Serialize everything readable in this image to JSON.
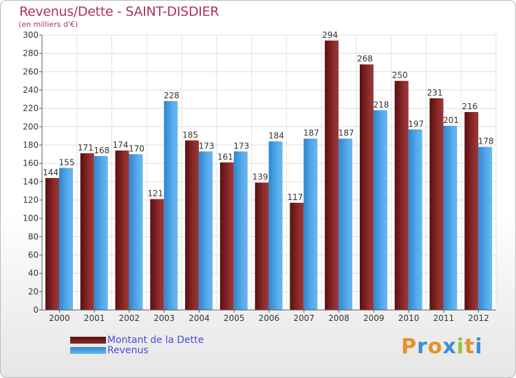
{
  "chart_data": {
    "type": "bar",
    "title": "Revenus/Dette - SAINT-DISDIER",
    "subtitle": "(en milliers d'€)",
    "categories": [
      "2000",
      "2001",
      "2002",
      "2003",
      "2004",
      "2005",
      "2006",
      "2007",
      "2008",
      "2009",
      "2010",
      "2011",
      "2012"
    ],
    "series": [
      {
        "name": "Montant de la Dette",
        "values": [
          144,
          171,
          174,
          121,
          185,
          161,
          139,
          117,
          294,
          268,
          250,
          231,
          216
        ],
        "color": "#7a1a1a"
      },
      {
        "name": "Revenus",
        "values": [
          155,
          168,
          170,
          228,
          173,
          173,
          184,
          187,
          187,
          218,
          197,
          201,
          178
        ],
        "color": "#4ea6e6"
      }
    ],
    "ylim": [
      0,
      300
    ],
    "yticks": [
      0,
      20,
      40,
      60,
      80,
      100,
      120,
      140,
      160,
      180,
      200,
      220,
      240,
      260,
      280,
      300
    ],
    "grid": true,
    "legend_position": "bottom-left"
  },
  "logo": {
    "text": "Proxiti",
    "letters": [
      {
        "ch": "P",
        "color": "#e8912a"
      },
      {
        "ch": "r",
        "color": "#3a8fd8"
      },
      {
        "ch": "o",
        "color": "#e8912a"
      },
      {
        "ch": "x",
        "color": "#3a8fd8"
      },
      {
        "ch": "i",
        "color": "#8cc63e"
      },
      {
        "ch": "t",
        "color": "#e8912a"
      },
      {
        "ch": "i",
        "color": "#3a8fd8"
      }
    ]
  }
}
